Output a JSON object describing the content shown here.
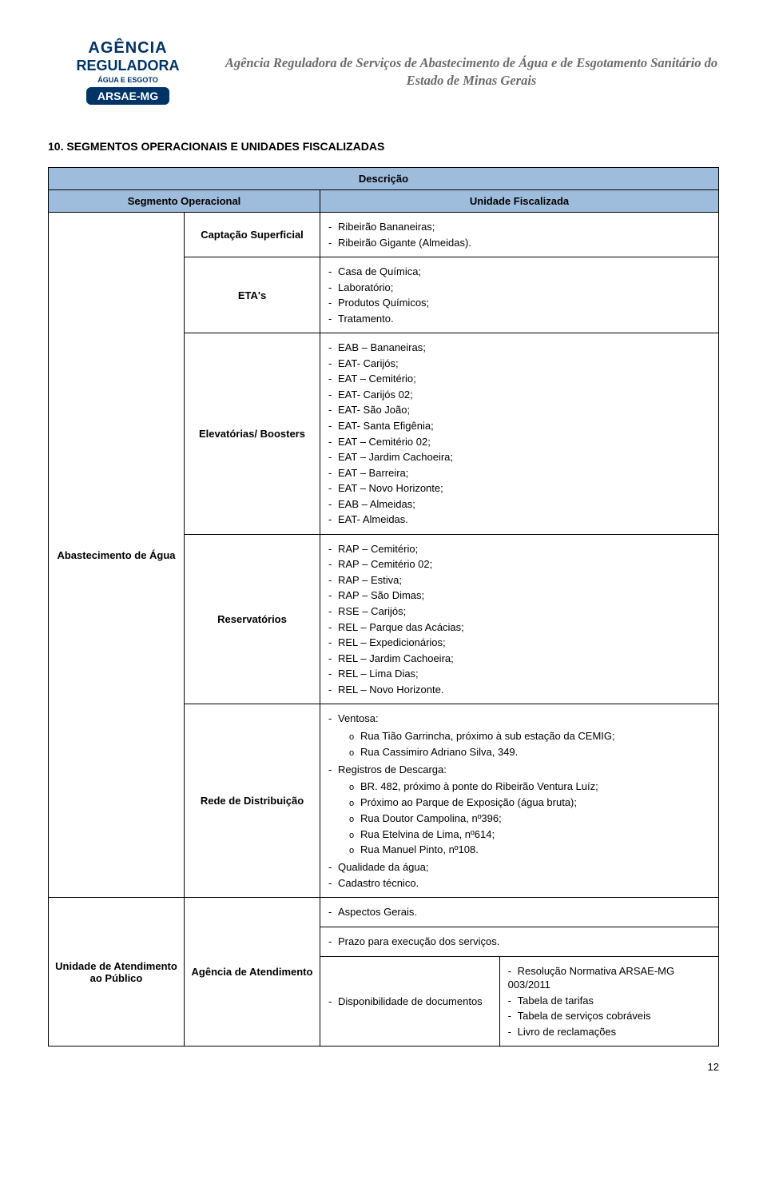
{
  "header": {
    "logo": {
      "line1": "AGÊNCIA",
      "line2": "REGULADORA",
      "subtitle": "ÁGUA E ESGOTO",
      "badge": "ARSAE-MG"
    },
    "title": "Agência Reguladora de Serviços de Abastecimento de Água e de Esgotamento Sanitário do Estado de Minas Gerais"
  },
  "section_title": "10. SEGMENTOS OPERACIONAIS E UNIDADES FISCALIZADAS",
  "table": {
    "header_descricao": "Descrição",
    "header_segmento": "Segmento Operacional",
    "header_unidade": "Unidade Fiscalizada",
    "groups": [
      {
        "label": "Abastecimento de Água",
        "rows": [
          {
            "segmento": "Captação Superficial",
            "items": [
              "Ribeirão Bananeiras;",
              "Ribeirão Gigante (Almeidas)."
            ]
          },
          {
            "segmento": "ETA's",
            "items": [
              "Casa de Química;",
              "Laboratório;",
              "Produtos Químicos;",
              "Tratamento."
            ]
          },
          {
            "segmento": "Elevatórias/ Boosters",
            "items": [
              "EAB – Bananeiras;",
              "EAT- Carijós;",
              "EAT – Cemitério;",
              "EAT- Carijós 02;",
              "EAT- São João;",
              "EAT- Santa Efigênia;",
              "EAT – Cemitério 02;",
              "EAT – Jardim Cachoeira;",
              "EAT – Barreira;",
              "EAT – Novo Horizonte;",
              "EAB – Almeidas;",
              "EAT- Almeidas."
            ]
          },
          {
            "segmento": "Reservatórios",
            "items": [
              "RAP – Cemitério;",
              "RAP – Cemitério 02;",
              "RAP – Estiva;",
              "RAP – São Dimas;",
              "RSE – Carijós;",
              "REL – Parque das Acácias;",
              "REL – Expedicionários;",
              "REL – Jardim Cachoeira;",
              "REL – Lima Dias;",
              "REL – Novo Horizonte."
            ]
          },
          {
            "segmento": "Rede de Distribuição",
            "complex": {
              "ventosa_label": "Ventosa:",
              "ventosa_items": [
                "Rua Tião Garrincha, próximo à sub estação da CEMIG;",
                "Rua Cassimiro Adriano Silva, 349."
              ],
              "registros_label": "Registros de Descarga:",
              "registros_items": [
                "BR. 482, próximo à ponte do Ribeirão Ventura Luíz;",
                "Próximo ao Parque de Exposição (água bruta);",
                "Rua Doutor Campolina, nº396;",
                "Rua Etelvina de Lima, nº614;",
                "Rua Manuel Pinto, nº108."
              ],
              "tail_items": [
                "Qualidade da água;",
                "Cadastro técnico."
              ]
            }
          }
        ]
      },
      {
        "label": "Unidade de Atendimento ao Público",
        "segmento": "Agência de Atendimento",
        "aspectos": "Aspectos Gerais.",
        "prazo": "Prazo para execução dos serviços.",
        "disp_label": "Disponibilidade de documentos",
        "disp_items": [
          "Resolução Normativa ARSAE-MG 003/2011",
          "Tabela de tarifas",
          "Tabela de serviços cobráveis",
          "Livro de reclamações"
        ]
      }
    ]
  },
  "page_number": "12",
  "colors": {
    "header_bg": "#9ebcdc",
    "border": "#000000",
    "text": "#000000",
    "logo_navy": "#003366",
    "header_grey": "#6b6b6b"
  }
}
